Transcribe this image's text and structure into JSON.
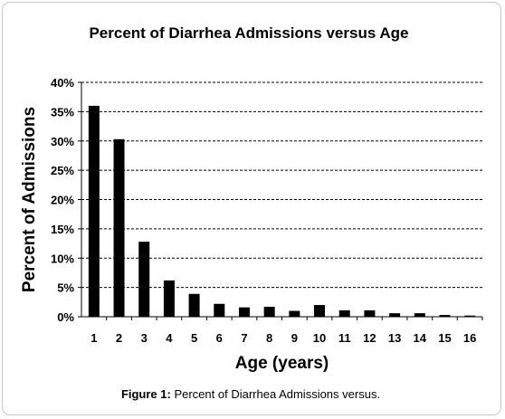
{
  "chart_data": {
    "type": "bar",
    "title": "Percent of Diarrhea Admissions versus Age",
    "xlabel": "Age (years)",
    "ylabel": "Percent of Admissions",
    "categories": [
      "1",
      "2",
      "3",
      "4",
      "5",
      "6",
      "7",
      "8",
      "9",
      "10",
      "11",
      "12",
      "13",
      "14",
      "15",
      "16"
    ],
    "values": [
      36.0,
      30.3,
      12.8,
      6.2,
      3.9,
      2.2,
      1.6,
      1.7,
      1.0,
      2.0,
      1.1,
      1.1,
      0.6,
      0.6,
      0.3,
      0.2
    ],
    "ylim": [
      0,
      40
    ],
    "yticks": [
      "0%",
      "5%",
      "10%",
      "15%",
      "20%",
      "25%",
      "30%",
      "35%",
      "40%"
    ],
    "grid": true,
    "bar_color": "#000000",
    "grid_color": "#000000"
  },
  "caption": {
    "label": "Figure 1:",
    "text": " Percent of Diarrhea Admissions versus."
  }
}
